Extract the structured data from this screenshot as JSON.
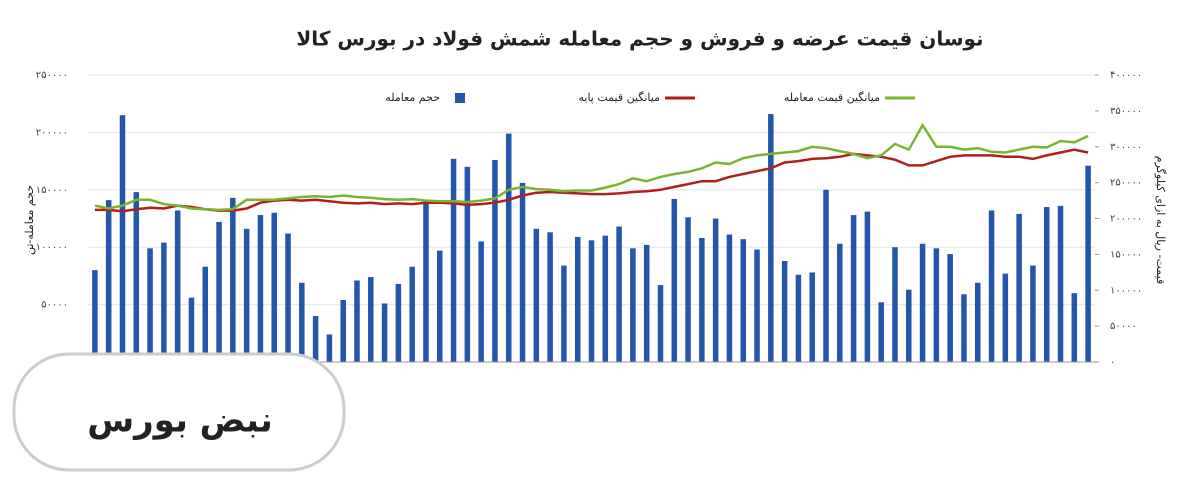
{
  "chart_data": {
    "type": "bar-line",
    "title": "نوسان قیمت عرضه و فروش و حجم معامله شمش فولاد در بورس کالا",
    "ylabel": "حجم معامله-تن",
    "y2label": "قیمت- ریال به ازای کیلوگرم",
    "ylim": [
      0,
      250000
    ],
    "yticks": [
      {
        "value": 50000,
        "label": "۵۰۰۰۰"
      },
      {
        "value": 100000,
        "label": "۱۰۰۰۰۰"
      },
      {
        "value": 150000,
        "label": "۱۵۰۰۰۰"
      },
      {
        "value": 200000,
        "label": "۲۰۰۰۰۰"
      },
      {
        "value": 250000,
        "label": "۲۵۰۰۰۰"
      }
    ],
    "y2lim": [
      0,
      400000
    ],
    "y2ticks": [
      {
        "value": 0,
        "label": "۰"
      },
      {
        "value": 50000,
        "label": "۵۰۰۰۰"
      },
      {
        "value": 100000,
        "label": "۱۰۰۰۰۰"
      },
      {
        "value": 150000,
        "label": "۱۵۰۰۰۰"
      },
      {
        "value": 200000,
        "label": "۲۰۰۰۰۰"
      },
      {
        "value": 250000,
        "label": "۲۵۰۰۰۰"
      },
      {
        "value": 300000,
        "label": "۳۰۰۰۰۰"
      },
      {
        "value": 350000,
        "label": "۳۵۰۰۰۰"
      },
      {
        "value": 400000,
        "label": "۴۰۰۰۰۰"
      }
    ],
    "series": [
      {
        "name": "حجم معامله",
        "color": "#2356a8",
        "kind": "bar",
        "values": [
          80000,
          141000,
          215000,
          148000,
          99000,
          104000,
          132000,
          56000,
          83000,
          122000,
          143000,
          116000,
          128000,
          130000,
          112000,
          69000,
          40000,
          24000,
          54000,
          71000,
          74000,
          51000,
          68000,
          83000,
          140000,
          97000,
          177000,
          170000,
          105000,
          176000,
          199000,
          156000,
          116000,
          113000,
          84000,
          109000,
          106000,
          110000,
          118000,
          99000,
          102000,
          67000,
          142000,
          126000,
          108000,
          125000,
          111000,
          107000,
          98000,
          216000,
          88000,
          76000,
          78000,
          150000,
          103000,
          128000,
          131000,
          52000,
          100000,
          63000,
          103000,
          99000,
          94000,
          59000,
          69000,
          132000,
          77000,
          129000,
          84000,
          135000,
          136000,
          60000,
          171000
        ]
      },
      {
        "name": "میانگین قیمت پایه",
        "color": "#b01e1e",
        "kind": "line",
        "axis": "y2",
        "values": [
          212000,
          212000,
          210000,
          213000,
          215000,
          214000,
          218000,
          216000,
          213000,
          211000,
          211000,
          214000,
          222000,
          225000,
          226000,
          225000,
          226000,
          224000,
          222000,
          221000,
          222000,
          220000,
          221000,
          220000,
          222000,
          222000,
          221000,
          219000,
          220000,
          222000,
          226000,
          232000,
          236000,
          237000,
          236000,
          235000,
          234000,
          234000,
          235000,
          237000,
          238000,
          240000,
          244000,
          248000,
          252000,
          252000,
          258000,
          262000,
          266000,
          270000,
          278000,
          280000,
          283000,
          284000,
          286000,
          290000,
          288000,
          286000,
          282000,
          274000,
          274000,
          280000,
          286000,
          288000,
          288000,
          288000,
          286000,
          286000,
          283000,
          288000,
          292000,
          296000,
          292000
        ]
      },
      {
        "name": "میانگین قیمت معامله",
        "color": "#7ab32e",
        "kind": "line",
        "axis": "y2",
        "values": [
          218000,
          214000,
          218000,
          226000,
          226000,
          220000,
          218000,
          214000,
          213000,
          212000,
          213000,
          226000,
          226000,
          226000,
          228000,
          230000,
          231000,
          230000,
          232000,
          230000,
          229000,
          227000,
          226000,
          227000,
          225000,
          224000,
          224000,
          223000,
          225000,
          228000,
          240000,
          244000,
          241000,
          240000,
          238000,
          239000,
          239000,
          243000,
          248000,
          256000,
          252000,
          258000,
          262000,
          265000,
          270000,
          278000,
          276000,
          284000,
          288000,
          290000,
          292000,
          294000,
          300000,
          298000,
          294000,
          290000,
          284000,
          288000,
          304000,
          296000,
          330000,
          300000,
          300000,
          296000,
          298000,
          293000,
          292000,
          296000,
          300000,
          299000,
          308000,
          306000,
          315000
        ]
      }
    ]
  },
  "logo": "نبض بورس"
}
